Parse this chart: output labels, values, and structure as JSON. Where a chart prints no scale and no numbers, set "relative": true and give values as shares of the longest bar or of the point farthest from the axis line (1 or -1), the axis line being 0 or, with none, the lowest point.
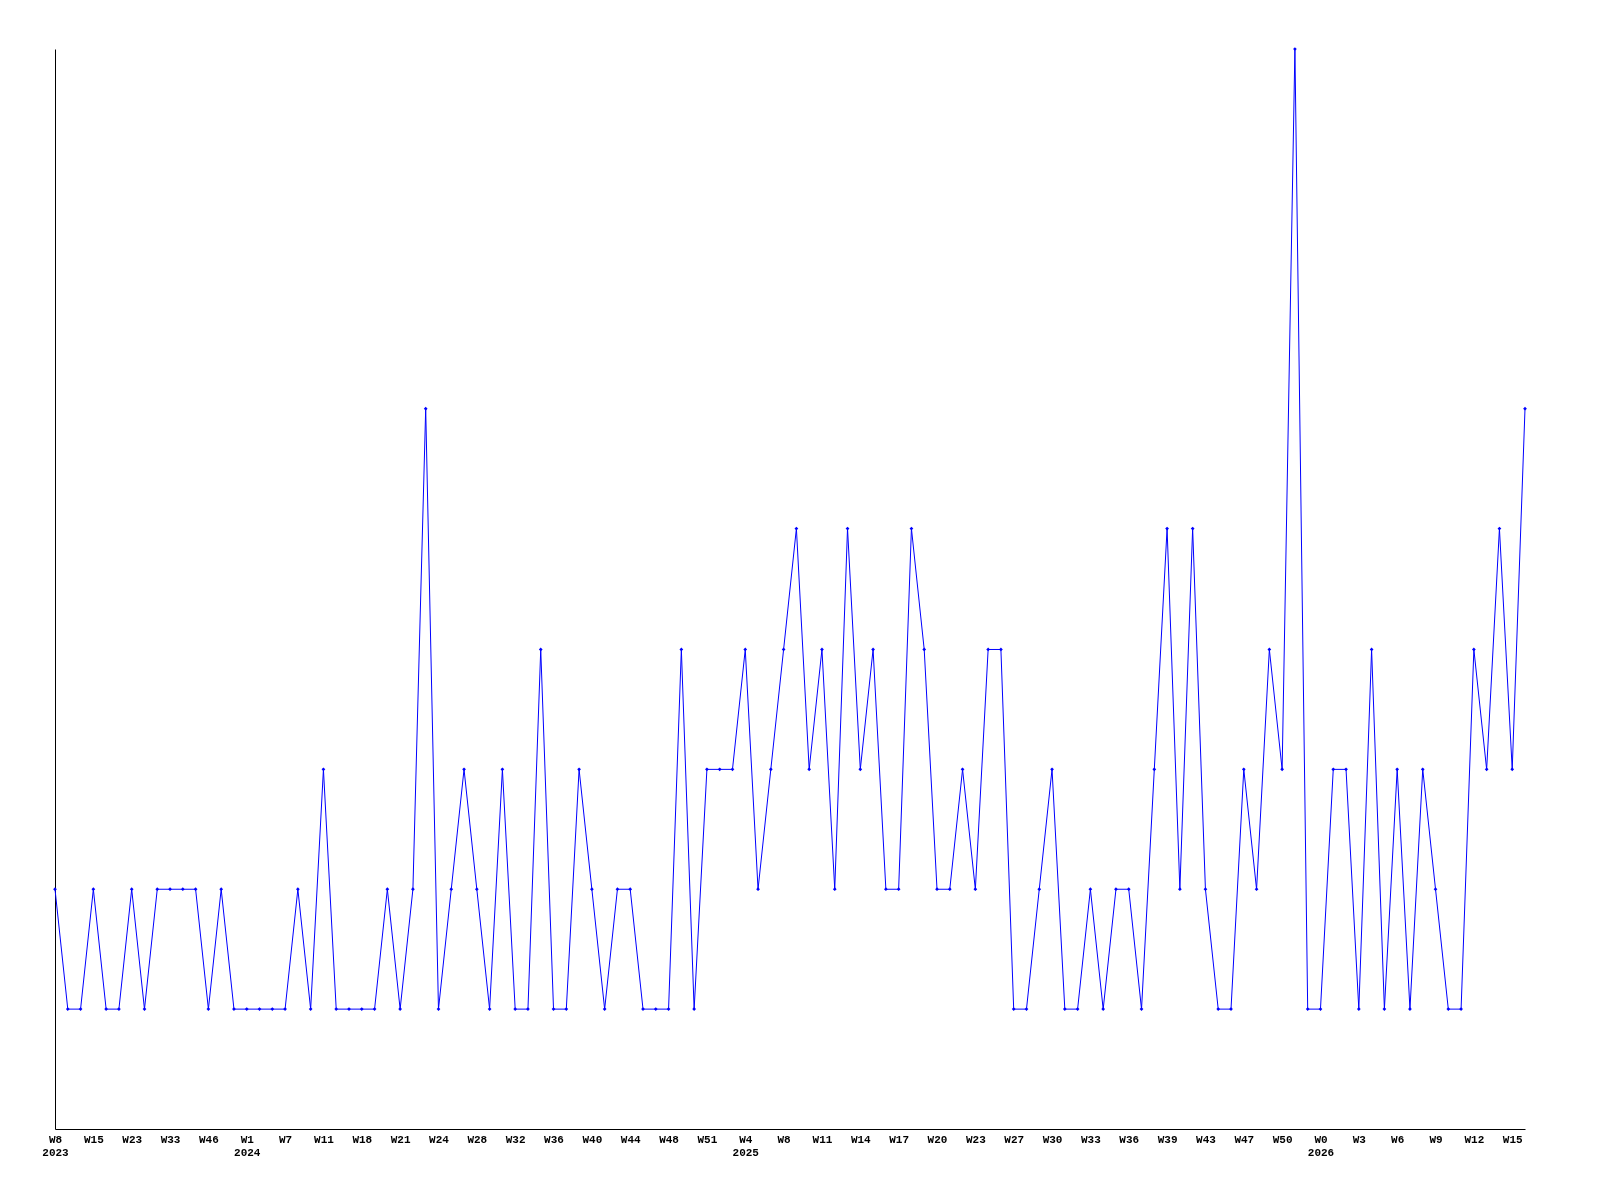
{
  "chart_data": {
    "type": "line",
    "relative": true,
    "marker": "diamond",
    "line_style": "solid",
    "grid": false,
    "categories": [
      "W8\n2023",
      null,
      null,
      "W15",
      null,
      null,
      "W23",
      null,
      null,
      "W33",
      null,
      null,
      "W46",
      null,
      null,
      "W1\n2024",
      null,
      null,
      "W7",
      null,
      null,
      "W11",
      null,
      null,
      "W18",
      null,
      null,
      "W21",
      null,
      null,
      "W24",
      null,
      null,
      "W28",
      null,
      null,
      "W32",
      null,
      null,
      "W36",
      null,
      null,
      "W40",
      null,
      null,
      "W44",
      null,
      null,
      "W48",
      null,
      null,
      "W51",
      null,
      null,
      "W4\n2025",
      null,
      null,
      "W8",
      null,
      null,
      "W11",
      null,
      null,
      "W14",
      null,
      null,
      "W17",
      null,
      null,
      "W20",
      null,
      null,
      "W23",
      null,
      null,
      "W27",
      null,
      null,
      "W30",
      null,
      null,
      "W33",
      null,
      null,
      "W36",
      null,
      null,
      "W39",
      null,
      null,
      "W43",
      null,
      null,
      "W47",
      null,
      null,
      "W50",
      null,
      null,
      "W0\n2026",
      null,
      null,
      "W3",
      null,
      null,
      "W6",
      null,
      null,
      "W9",
      null,
      null,
      "W12",
      null,
      null,
      "W15",
      null
    ],
    "series": [
      {
        "color": "#0000ff",
        "values": [
          0.222,
          0.111,
          0.111,
          0.222,
          0.111,
          0.111,
          0.222,
          0.111,
          0.222,
          0.222,
          0.222,
          0.222,
          0.111,
          0.222,
          0.111,
          0.111,
          0.111,
          0.111,
          0.111,
          0.222,
          0.111,
          0.333,
          0.111,
          0.111,
          0.111,
          0.111,
          0.222,
          0.111,
          0.222,
          0.667,
          0.111,
          0.222,
          0.333,
          0.222,
          0.111,
          0.333,
          0.111,
          0.111,
          0.444,
          0.111,
          0.111,
          0.333,
          0.222,
          0.111,
          0.222,
          0.222,
          0.111,
          0.111,
          0.111,
          0.444,
          0.111,
          0.333,
          0.333,
          0.333,
          0.444,
          0.222,
          0.333,
          0.444,
          0.556,
          0.333,
          0.444,
          0.222,
          0.556,
          0.333,
          0.444,
          0.222,
          0.222,
          0.556,
          0.444,
          0.222,
          0.222,
          0.333,
          0.222,
          0.444,
          0.444,
          0.111,
          0.111,
          0.222,
          0.333,
          0.111,
          0.111,
          0.222,
          0.111,
          0.222,
          0.222,
          0.111,
          0.333,
          0.556,
          0.222,
          0.556,
          0.222,
          0.111,
          0.111,
          0.333,
          0.222,
          0.444,
          0.333,
          1,
          0.111,
          0.111,
          0.333,
          0.333,
          0.111,
          0.444,
          0.111,
          0.333,
          0.111,
          0.333,
          0.222,
          0.111,
          0.111,
          0.444,
          0.333,
          0.556,
          0.333,
          0.667
        ]
      }
    ]
  }
}
